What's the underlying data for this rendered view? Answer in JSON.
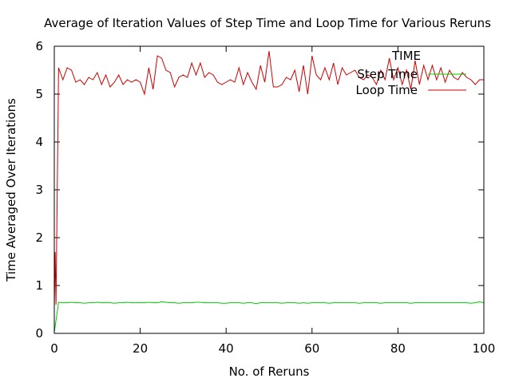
{
  "chart_data": {
    "type": "line",
    "title": "Average of Iteration Values of Step Time and Loop Time for Various Reruns",
    "xlabel": "No. of Reruns",
    "ylabel": "Time Averaged Over Iterations",
    "xlim": [
      0,
      100
    ],
    "ylim": [
      0,
      6
    ],
    "xticks": [
      0,
      20,
      40,
      60,
      80,
      100
    ],
    "yticks": [
      0,
      1,
      2,
      3,
      4,
      5,
      6
    ],
    "grid": false,
    "legend_title": "TIME",
    "legend_position": "top-right",
    "series": [
      {
        "name": "Step Time",
        "color": "#00cc00",
        "x": [
          0,
          1,
          2,
          3,
          4,
          5,
          6,
          7,
          8,
          9,
          10,
          11,
          12,
          13,
          14,
          15,
          16,
          17,
          18,
          19,
          20,
          21,
          22,
          23,
          24,
          25,
          26,
          27,
          28,
          29,
          30,
          31,
          32,
          33,
          34,
          35,
          36,
          37,
          38,
          39,
          40,
          41,
          42,
          43,
          44,
          45,
          46,
          47,
          48,
          49,
          50,
          51,
          52,
          53,
          54,
          55,
          56,
          57,
          58,
          59,
          60,
          61,
          62,
          63,
          64,
          65,
          66,
          67,
          68,
          69,
          70,
          71,
          72,
          73,
          74,
          75,
          76,
          77,
          78,
          79,
          80,
          81,
          82,
          83,
          84,
          85,
          86,
          87,
          88,
          89,
          90,
          91,
          92,
          93,
          94,
          95,
          96,
          97,
          98,
          99,
          100
        ],
        "values": [
          0.02,
          0.65,
          0.64,
          0.64,
          0.65,
          0.64,
          0.64,
          0.63,
          0.64,
          0.64,
          0.65,
          0.64,
          0.64,
          0.64,
          0.63,
          0.64,
          0.64,
          0.65,
          0.64,
          0.64,
          0.64,
          0.64,
          0.65,
          0.64,
          0.64,
          0.66,
          0.65,
          0.64,
          0.64,
          0.63,
          0.64,
          0.64,
          0.64,
          0.65,
          0.65,
          0.64,
          0.64,
          0.64,
          0.64,
          0.63,
          0.63,
          0.64,
          0.64,
          0.64,
          0.63,
          0.64,
          0.64,
          0.62,
          0.64,
          0.64,
          0.64,
          0.64,
          0.64,
          0.63,
          0.64,
          0.64,
          0.64,
          0.63,
          0.64,
          0.63,
          0.64,
          0.64,
          0.64,
          0.64,
          0.63,
          0.64,
          0.64,
          0.64,
          0.64,
          0.64,
          0.64,
          0.63,
          0.64,
          0.64,
          0.64,
          0.64,
          0.63,
          0.64,
          0.64,
          0.64,
          0.64,
          0.64,
          0.64,
          0.63,
          0.64,
          0.64,
          0.64,
          0.64,
          0.64,
          0.64,
          0.64,
          0.64,
          0.64,
          0.64,
          0.64,
          0.64,
          0.64,
          0.63,
          0.64,
          0.66,
          0.64
        ]
      },
      {
        "name": "Loop Time",
        "color": "#cc0000",
        "x": [
          0,
          0.2,
          0.4,
          1,
          2,
          3,
          4,
          5,
          6,
          7,
          8,
          9,
          10,
          11,
          12,
          13,
          14,
          15,
          16,
          17,
          18,
          19,
          20,
          21,
          22,
          23,
          24,
          25,
          26,
          27,
          28,
          29,
          30,
          31,
          32,
          33,
          34,
          35,
          36,
          37,
          38,
          39,
          40,
          41,
          42,
          43,
          44,
          45,
          46,
          47,
          48,
          49,
          50,
          51,
          52,
          53,
          54,
          55,
          56,
          57,
          58,
          59,
          60,
          61,
          62,
          63,
          64,
          65,
          66,
          67,
          68,
          69,
          70,
          71,
          72,
          73,
          74,
          75,
          76,
          77,
          78,
          79,
          80,
          81,
          82,
          83,
          84,
          85,
          86,
          87,
          88,
          89,
          90,
          91,
          92,
          93,
          94,
          95,
          96,
          97,
          98,
          99,
          100
        ],
        "values": [
          0.55,
          1.7,
          0.6,
          5.55,
          5.3,
          5.55,
          5.5,
          5.25,
          5.3,
          5.2,
          5.35,
          5.3,
          5.45,
          5.2,
          5.4,
          5.15,
          5.25,
          5.4,
          5.2,
          5.3,
          5.25,
          5.3,
          5.25,
          5.0,
          5.55,
          5.1,
          5.8,
          5.75,
          5.5,
          5.45,
          5.15,
          5.35,
          5.4,
          5.35,
          5.65,
          5.4,
          5.65,
          5.35,
          5.45,
          5.4,
          5.25,
          5.2,
          5.25,
          5.3,
          5.25,
          5.55,
          5.2,
          5.45,
          5.25,
          5.1,
          5.6,
          5.25,
          5.9,
          5.15,
          5.15,
          5.2,
          5.35,
          5.3,
          5.5,
          5.05,
          5.6,
          5.0,
          5.8,
          5.4,
          5.3,
          5.55,
          5.3,
          5.65,
          5.2,
          5.55,
          5.4,
          5.45,
          5.5,
          5.35,
          5.3,
          5.4,
          5.35,
          5.2,
          5.5,
          5.3,
          5.75,
          5.3,
          5.55,
          5.2,
          5.5,
          5.1,
          5.7,
          5.2,
          5.6,
          5.3,
          5.6,
          5.3,
          5.55,
          5.25,
          5.5,
          5.35,
          5.3,
          5.45,
          5.35,
          5.3,
          5.2,
          5.3,
          5.3
        ]
      }
    ]
  }
}
